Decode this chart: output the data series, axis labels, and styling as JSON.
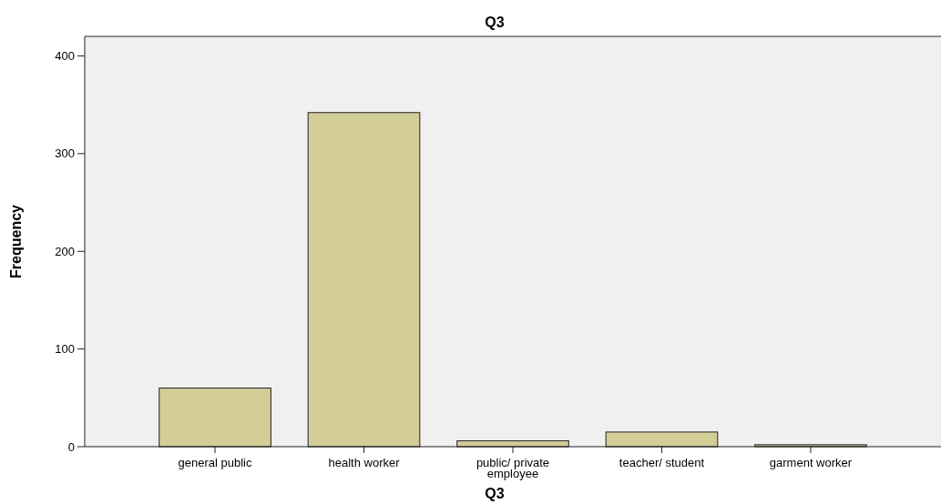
{
  "chart_data": {
    "type": "bar",
    "title": "Q3",
    "xlabel": "Q3",
    "ylabel": "Frequency",
    "categories": [
      "general public",
      "health worker",
      "public/ private employee",
      "teacher/ student",
      "garment worker"
    ],
    "values": [
      60,
      342,
      6,
      15,
      2
    ],
    "color": "#d3cd98",
    "ylim": [
      0,
      420
    ],
    "yticks": [
      0,
      100,
      200,
      300,
      400
    ],
    "grid": false
  }
}
